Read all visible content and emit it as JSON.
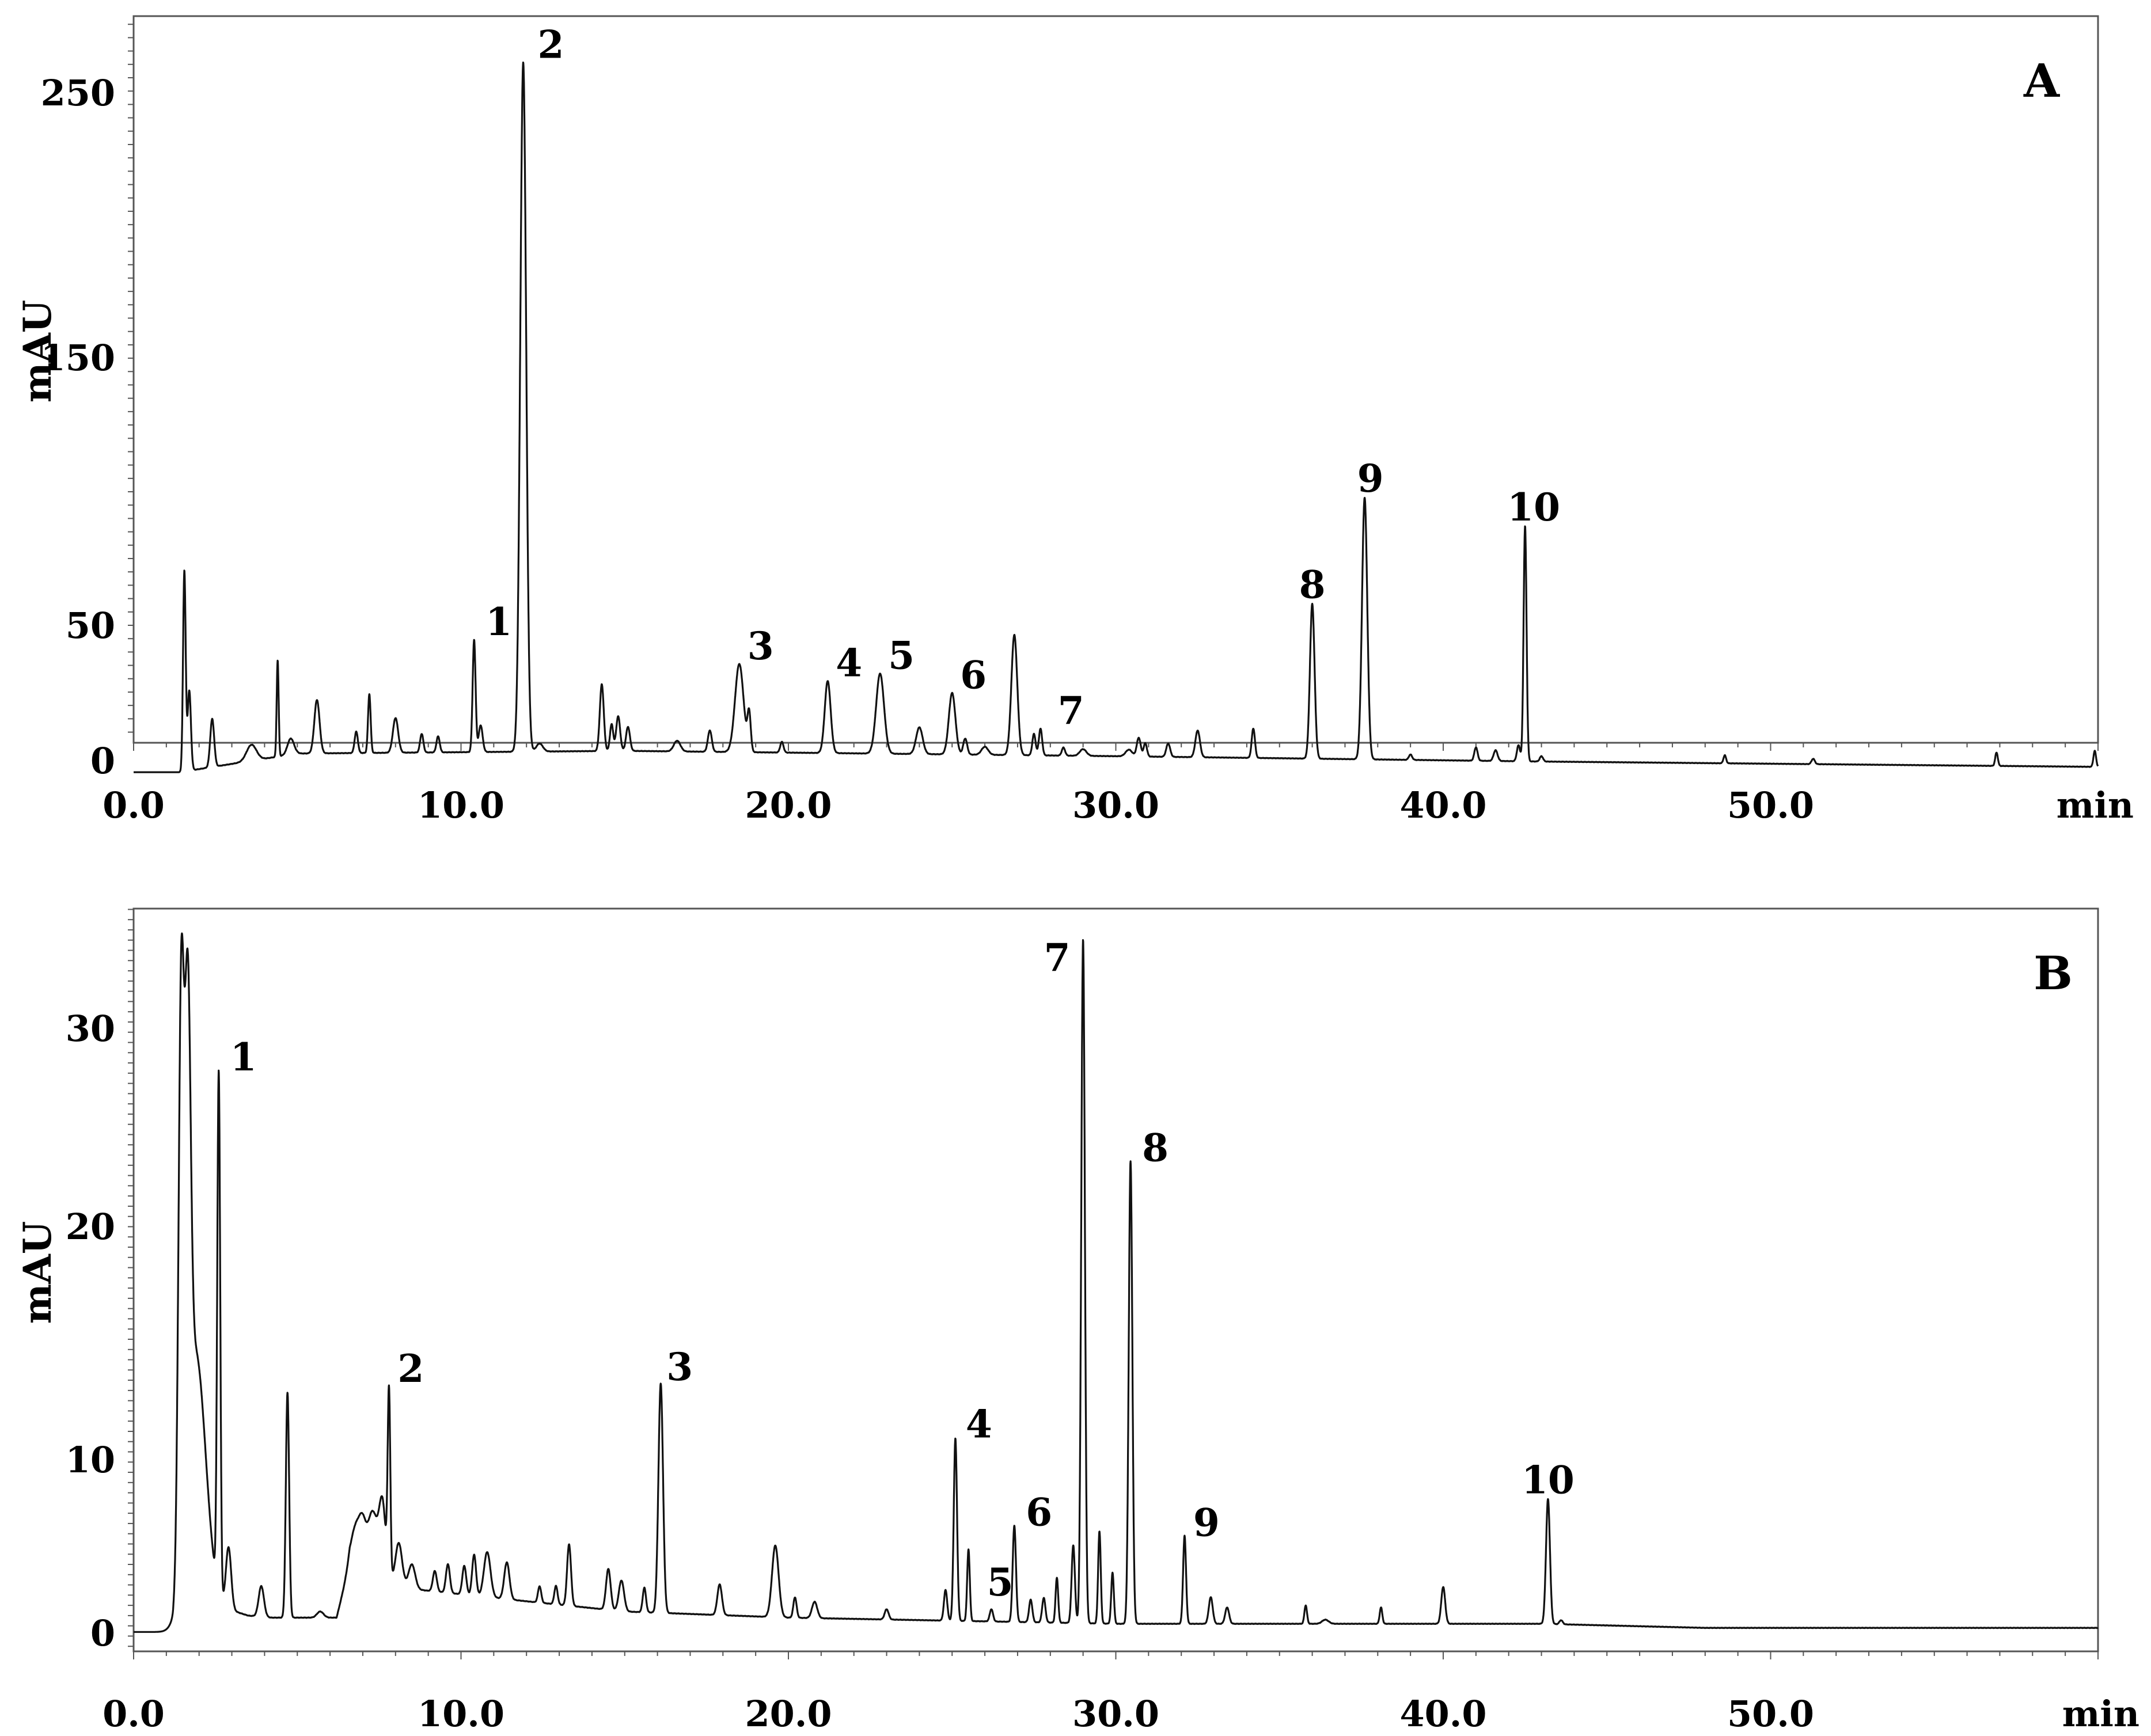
{
  "chart_data": [
    {
      "type": "line",
      "panel_label": "A",
      "ylabel": "mAU",
      "xunit": "min",
      "xlim": [
        0,
        60
      ],
      "ylim": [
        0,
        280
      ],
      "x_ticks": [
        "0.0",
        "10.0",
        "20.0",
        "30.0",
        "40.0",
        "50.0"
      ],
      "y_ticks": [
        "0",
        "50",
        "150",
        "250"
      ],
      "y_tick_values": [
        0,
        50,
        150,
        250
      ],
      "grid": false,
      "baseline": [
        [
          0,
          0
        ],
        [
          1.4,
          0
        ],
        [
          5,
          7
        ],
        [
          15,
          8
        ],
        [
          30,
          6
        ],
        [
          43,
          4
        ],
        [
          60,
          2
        ]
      ],
      "peaks": [
        {
          "x": 1.55,
          "y": 75,
          "w": 0.04
        },
        {
          "x": 1.7,
          "y": 30,
          "w": 0.05
        },
        {
          "x": 2.4,
          "y": 18,
          "w": 0.06
        },
        {
          "x": 3.6,
          "y": 6,
          "w": 0.15
        },
        {
          "x": 4.4,
          "y": 36,
          "w": 0.03
        },
        {
          "x": 4.8,
          "y": 6,
          "w": 0.1
        },
        {
          "x": 5.6,
          "y": 20,
          "w": 0.08
        },
        {
          "x": 6.8,
          "y": 8,
          "w": 0.05
        },
        {
          "x": 7.2,
          "y": 22,
          "w": 0.04
        },
        {
          "x": 8.0,
          "y": 13,
          "w": 0.08
        },
        {
          "x": 8.8,
          "y": 7,
          "w": 0.05
        },
        {
          "x": 9.3,
          "y": 6,
          "w": 0.05
        },
        {
          "x": 10.4,
          "y": 42,
          "w": 0.045,
          "label": "1"
        },
        {
          "x": 10.6,
          "y": 10,
          "w": 0.06
        },
        {
          "x": 11.9,
          "y": 258,
          "w": 0.09,
          "label": "2"
        },
        {
          "x": 12.4,
          "y": 3,
          "w": 0.1
        },
        {
          "x": 14.3,
          "y": 25,
          "w": 0.06
        },
        {
          "x": 14.6,
          "y": 10,
          "w": 0.05
        },
        {
          "x": 14.8,
          "y": 13,
          "w": 0.06
        },
        {
          "x": 15.1,
          "y": 9,
          "w": 0.06
        },
        {
          "x": 16.6,
          "y": 4,
          "w": 0.1
        },
        {
          "x": 17.6,
          "y": 8,
          "w": 0.06
        },
        {
          "x": 18.5,
          "y": 33,
          "w": 0.13,
          "label": "3"
        },
        {
          "x": 18.8,
          "y": 14,
          "w": 0.05
        },
        {
          "x": 19.8,
          "y": 4,
          "w": 0.05
        },
        {
          "x": 21.2,
          "y": 27,
          "w": 0.09,
          "label": "4"
        },
        {
          "x": 22.8,
          "y": 30,
          "w": 0.12,
          "label": "5"
        },
        {
          "x": 24.0,
          "y": 10,
          "w": 0.1
        },
        {
          "x": 25.0,
          "y": 23,
          "w": 0.1,
          "label": "6"
        },
        {
          "x": 25.4,
          "y": 6,
          "w": 0.06
        },
        {
          "x": 26.0,
          "y": 3,
          "w": 0.1
        },
        {
          "x": 26.9,
          "y": 45,
          "w": 0.09
        },
        {
          "x": 27.5,
          "y": 8,
          "w": 0.05
        },
        {
          "x": 27.7,
          "y": 10,
          "w": 0.05,
          "label": "7"
        },
        {
          "x": 28.4,
          "y": 3,
          "w": 0.05
        },
        {
          "x": 29.0,
          "y": 2.5,
          "w": 0.1
        },
        {
          "x": 30.4,
          "y": 2.5,
          "w": 0.1
        },
        {
          "x": 30.7,
          "y": 7,
          "w": 0.06
        },
        {
          "x": 30.9,
          "y": 5,
          "w": 0.05
        },
        {
          "x": 31.6,
          "y": 5,
          "w": 0.06
        },
        {
          "x": 32.5,
          "y": 10,
          "w": 0.07
        },
        {
          "x": 34.2,
          "y": 11,
          "w": 0.05
        },
        {
          "x": 36.0,
          "y": 58,
          "w": 0.07,
          "label": "8"
        },
        {
          "x": 37.6,
          "y": 98,
          "w": 0.08,
          "label": "9"
        },
        {
          "x": 39.0,
          "y": 2,
          "w": 0.05
        },
        {
          "x": 41.0,
          "y": 5,
          "w": 0.05
        },
        {
          "x": 41.6,
          "y": 4,
          "w": 0.06
        },
        {
          "x": 42.3,
          "y": 6,
          "w": 0.05
        },
        {
          "x": 42.5,
          "y": 88,
          "w": 0.045,
          "label": "10"
        },
        {
          "x": 43.0,
          "y": 2,
          "w": 0.05
        },
        {
          "x": 48.6,
          "y": 3,
          "w": 0.04
        },
        {
          "x": 51.3,
          "y": 2,
          "w": 0.05
        },
        {
          "x": 56.9,
          "y": 5,
          "w": 0.04
        },
        {
          "x": 59.9,
          "y": 6,
          "w": 0.04
        }
      ]
    },
    {
      "type": "line",
      "panel_label": "B",
      "ylabel": "mAU",
      "xunit": "min",
      "xlim": [
        0,
        60
      ],
      "ylim": [
        0,
        36
      ],
      "x_ticks": [
        "0.0",
        "10.0",
        "20.0",
        "30.0",
        "40.0",
        "50.0"
      ],
      "y_ticks": [
        "0",
        "10",
        "20",
        "30"
      ],
      "y_tick_values": [
        0,
        10,
        20,
        30
      ],
      "grid": false,
      "baseline": [
        [
          0,
          1.2
        ],
        [
          1.2,
          1.2
        ],
        [
          1.5,
          3
        ],
        [
          3.5,
          2
        ],
        [
          4.2,
          1.9
        ],
        [
          6.2,
          1.9
        ],
        [
          6.6,
          4.5
        ],
        [
          8.5,
          3.3
        ],
        [
          12,
          2.7
        ],
        [
          15,
          2.2
        ],
        [
          20,
          1.9
        ],
        [
          30,
          1.6
        ],
        [
          43,
          1.6
        ],
        [
          48,
          1.4
        ],
        [
          60,
          1.4
        ]
      ],
      "peaks": [
        {
          "x": 1.45,
          "y": 26,
          "w": 0.08
        },
        {
          "x": 1.65,
          "y": 22,
          "w": 0.09
        },
        {
          "x": 1.9,
          "y": 12,
          "w": 0.3
        },
        {
          "x": 2.6,
          "y": 25.4,
          "w": 0.045,
          "label": "1"
        },
        {
          "x": 2.9,
          "y": 3,
          "w": 0.08
        },
        {
          "x": 3.9,
          "y": 1.5,
          "w": 0.08
        },
        {
          "x": 4.7,
          "y": 11,
          "w": 0.05
        },
        {
          "x": 5.7,
          "y": 0.3,
          "w": 0.1
        },
        {
          "x": 6.8,
          "y": 2,
          "w": 0.15
        },
        {
          "x": 7.0,
          "y": 1.5,
          "w": 0.1
        },
        {
          "x": 7.3,
          "y": 3,
          "w": 0.15
        },
        {
          "x": 7.6,
          "y": 3.5,
          "w": 0.1
        },
        {
          "x": 7.8,
          "y": 9,
          "w": 0.04,
          "label": "2"
        },
        {
          "x": 8.1,
          "y": 2,
          "w": 0.1
        },
        {
          "x": 8.5,
          "y": 1.2,
          "w": 0.1
        },
        {
          "x": 9.2,
          "y": 1,
          "w": 0.06
        },
        {
          "x": 9.6,
          "y": 1.4,
          "w": 0.06
        },
        {
          "x": 10.1,
          "y": 1.4,
          "w": 0.06
        },
        {
          "x": 10.4,
          "y": 2,
          "w": 0.06
        },
        {
          "x": 10.8,
          "y": 2.2,
          "w": 0.1
        },
        {
          "x": 11.4,
          "y": 1.8,
          "w": 0.08
        },
        {
          "x": 12.4,
          "y": 0.8,
          "w": 0.05
        },
        {
          "x": 12.9,
          "y": 0.9,
          "w": 0.05
        },
        {
          "x": 13.3,
          "y": 3,
          "w": 0.06
        },
        {
          "x": 14.5,
          "y": 2,
          "w": 0.07
        },
        {
          "x": 14.9,
          "y": 1.5,
          "w": 0.08
        },
        {
          "x": 15.6,
          "y": 1.2,
          "w": 0.05
        },
        {
          "x": 16.1,
          "y": 11.2,
          "w": 0.07,
          "label": "3"
        },
        {
          "x": 17.9,
          "y": 1.5,
          "w": 0.07
        },
        {
          "x": 19.6,
          "y": 3.5,
          "w": 0.1
        },
        {
          "x": 20.2,
          "y": 1,
          "w": 0.05
        },
        {
          "x": 20.8,
          "y": 0.8,
          "w": 0.08
        },
        {
          "x": 23.0,
          "y": 0.5,
          "w": 0.06
        },
        {
          "x": 24.8,
          "y": 1.5,
          "w": 0.05
        },
        {
          "x": 25.1,
          "y": 8.9,
          "w": 0.05,
          "label": "4"
        },
        {
          "x": 25.5,
          "y": 3.5,
          "w": 0.04,
          "label": "5"
        },
        {
          "x": 26.2,
          "y": 0.6,
          "w": 0.05
        },
        {
          "x": 26.9,
          "y": 4.7,
          "w": 0.05,
          "label": "6"
        },
        {
          "x": 27.4,
          "y": 1.1,
          "w": 0.05
        },
        {
          "x": 27.8,
          "y": 1.2,
          "w": 0.05
        },
        {
          "x": 28.2,
          "y": 2.2,
          "w": 0.04
        },
        {
          "x": 28.7,
          "y": 3.8,
          "w": 0.05
        },
        {
          "x": 29.0,
          "y": 33.4,
          "w": 0.055,
          "label": "7"
        },
        {
          "x": 29.5,
          "y": 4.5,
          "w": 0.04
        },
        {
          "x": 29.9,
          "y": 2.5,
          "w": 0.04
        },
        {
          "x": 30.45,
          "y": 22.6,
          "w": 0.055,
          "label": "8"
        },
        {
          "x": 32.1,
          "y": 4.3,
          "w": 0.045,
          "label": "9"
        },
        {
          "x": 32.9,
          "y": 1.3,
          "w": 0.06
        },
        {
          "x": 33.4,
          "y": 0.8,
          "w": 0.06
        },
        {
          "x": 35.8,
          "y": 0.9,
          "w": 0.04
        },
        {
          "x": 36.4,
          "y": 0.2,
          "w": 0.1
        },
        {
          "x": 38.1,
          "y": 0.8,
          "w": 0.04
        },
        {
          "x": 40.0,
          "y": 1.8,
          "w": 0.06
        },
        {
          "x": 43.2,
          "y": 6.1,
          "w": 0.06,
          "label": "10"
        },
        {
          "x": 43.6,
          "y": 0.2,
          "w": 0.05
        }
      ]
    }
  ]
}
